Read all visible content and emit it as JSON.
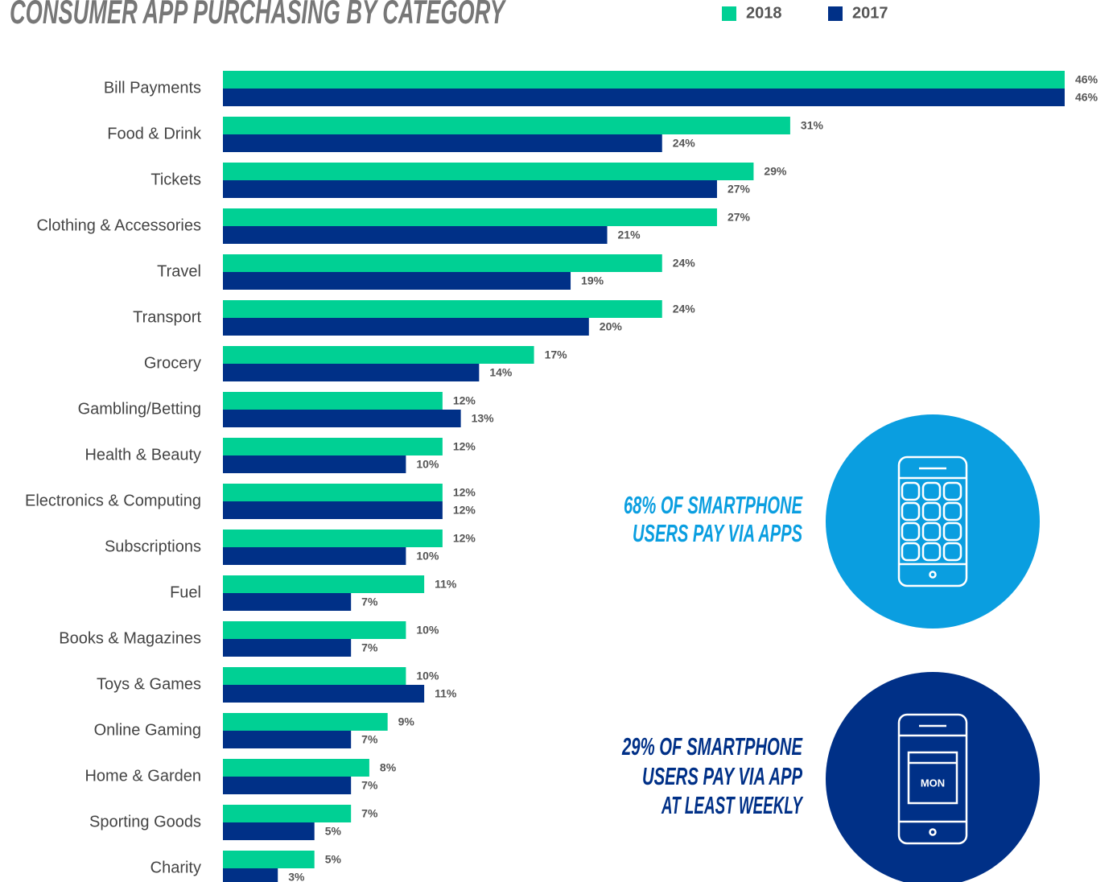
{
  "chart_data": {
    "type": "bar",
    "orientation": "horizontal",
    "title": "CONSUMER APP PURCHASING BY CATEGORY",
    "categories": [
      "Bill Payments",
      "Food & Drink",
      "Tickets",
      "Clothing & Accessories",
      "Travel",
      "Transport",
      "Grocery",
      "Gambling/Betting",
      "Health & Beauty",
      "Electronics & Computing",
      "Subscriptions",
      "Fuel",
      "Books & Magazines",
      "Toys & Games",
      "Online Gaming",
      "Home & Garden",
      "Sporting Goods",
      "Charity"
    ],
    "series": [
      {
        "name": "2018",
        "color": "#00d094",
        "values": [
          46,
          31,
          29,
          27,
          24,
          24,
          17,
          12,
          12,
          12,
          12,
          11,
          10,
          10,
          9,
          8,
          7,
          5
        ],
        "value_labels": [
          "46%",
          "31%",
          "29%",
          "27%",
          "24%",
          "24%",
          "17%",
          "12%",
          "12%",
          "12%",
          "12%",
          "11%",
          "10%",
          "10%",
          "9%",
          "8%",
          "7%",
          "5%"
        ]
      },
      {
        "name": "2017",
        "color": "#003087",
        "values": [
          46,
          24,
          27,
          21,
          19,
          20,
          14,
          13,
          10,
          12,
          10,
          7,
          7,
          11,
          7,
          7,
          5,
          3
        ],
        "value_labels": [
          "46%",
          "24%",
          "27%",
          "21%",
          "19%",
          "20%",
          "14%",
          "13%",
          "10%",
          "12%",
          "10%",
          "7%",
          "7%",
          "11%",
          "7%",
          "7%",
          "5%",
          "3%"
        ]
      }
    ],
    "xlim": [
      0,
      46
    ],
    "legend": "top",
    "annotations": [
      {
        "lines": [
          "68% OF SMARTPHONE",
          "USERS PAY VIA APPS"
        ],
        "color": "#0a9ee0"
      },
      {
        "lines": [
          "29% OF SMARTPHONE",
          "USERS PAY VIA APP",
          "AT LEAST WEEKLY"
        ],
        "color": "#003087",
        "icon_text": "MON"
      }
    ]
  }
}
